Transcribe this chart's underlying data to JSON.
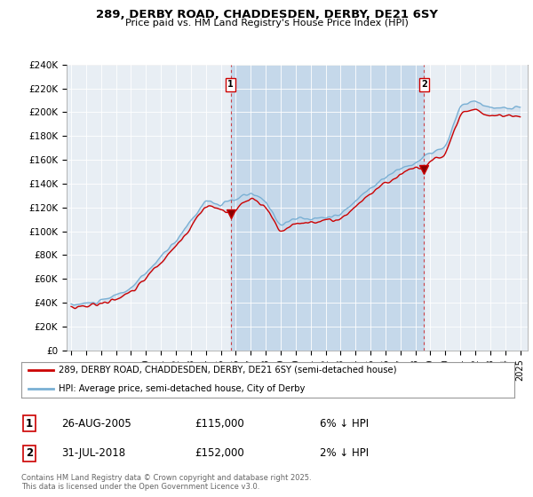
{
  "title": "289, DERBY ROAD, CHADDESDEN, DERBY, DE21 6SY",
  "subtitle": "Price paid vs. HM Land Registry's House Price Index (HPI)",
  "ylabel_ticks": [
    "£0",
    "£20K",
    "£40K",
    "£60K",
    "£80K",
    "£100K",
    "£120K",
    "£140K",
    "£160K",
    "£180K",
    "£200K",
    "£220K",
    "£240K"
  ],
  "ylim": [
    0,
    240000
  ],
  "ytick_vals": [
    0,
    20000,
    40000,
    60000,
    80000,
    100000,
    120000,
    140000,
    160000,
    180000,
    200000,
    220000,
    240000
  ],
  "sale_labels": [
    "1",
    "2"
  ],
  "annotation1": {
    "label": "1",
    "date": "26-AUG-2005",
    "price": "£115,000",
    "pct": "6% ↓ HPI"
  },
  "annotation2": {
    "label": "2",
    "date": "31-JUL-2018",
    "price": "£152,000",
    "pct": "2% ↓ HPI"
  },
  "legend_line1": "289, DERBY ROAD, CHADDESDEN, DERBY, DE21 6SY (semi-detached house)",
  "legend_line2": "HPI: Average price, semi-detached house, City of Derby",
  "footer": "Contains HM Land Registry data © Crown copyright and database right 2025.\nThis data is licensed under the Open Government Licence v3.0.",
  "line_color_red": "#cc0000",
  "line_color_blue": "#7ab0d4",
  "vline_color": "#cc0000",
  "background_color": "#ffffff",
  "plot_bg_color": "#e8eef4",
  "fill_between_color": "#c5d8ea",
  "grid_color": "#ffffff",
  "sale1_x": 2005.65,
  "sale2_x": 2018.58,
  "sale1_y": 115000,
  "sale2_y": 152000,
  "xlim_left": 1994.7,
  "xlim_right": 2025.5
}
